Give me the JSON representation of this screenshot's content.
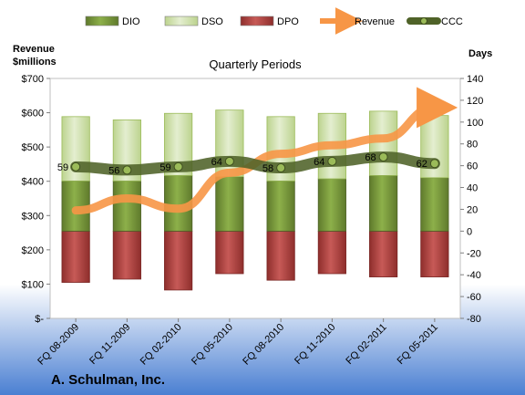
{
  "company": "A. Schulman, Inc.",
  "chart_data": {
    "type": "bar",
    "title": "Quarterly Periods",
    "ylabel_left": "Revenue\n$millions",
    "ylabel_right": "Days",
    "categories": [
      "FQ 08-2009",
      "FQ 11-2009",
      "FQ 02-2010",
      "FQ 05-2010",
      "FQ 08-2010",
      "FQ 11-2010",
      "FQ 02-2011",
      "FQ 05-2011"
    ],
    "left_axis": {
      "min": 0,
      "max": 700,
      "step": 100,
      "tick_labels": [
        "$-",
        "$100",
        "$200",
        "$300",
        "$400",
        "$500",
        "$600",
        "$700"
      ]
    },
    "right_axis": {
      "min": -80,
      "max": 140,
      "step": 20,
      "tick_labels": [
        "-80",
        "-60",
        "-40",
        "-20",
        "0",
        "20",
        "40",
        "60",
        "80",
        "100",
        "120",
        "140"
      ]
    },
    "legend": {
      "position": "top",
      "entries": [
        {
          "name": "DIO",
          "color": "#77933c"
        },
        {
          "name": "DSO",
          "color": "#d7e4bd"
        },
        {
          "name": "DPO",
          "color": "#b94a48"
        },
        {
          "name": "Revenue",
          "color": "#f79646"
        },
        {
          "name": "CCC",
          "color": "#4f6228"
        }
      ]
    },
    "series": [
      {
        "name": "DIO",
        "axis": "right",
        "stack": "positive",
        "values": [
          46,
          46,
          51,
          50,
          46,
          48,
          51,
          49
        ]
      },
      {
        "name": "DSO",
        "axis": "right",
        "stack": "positive",
        "values": [
          59,
          56,
          57,
          61,
          59,
          60,
          59,
          57
        ]
      },
      {
        "name": "DPO",
        "axis": "right",
        "stack": "negative",
        "values": [
          -47,
          -44,
          -54,
          -39,
          -45,
          -39,
          -42,
          -42
        ]
      },
      {
        "name": "Revenue",
        "axis": "left",
        "type": "line",
        "values": [
          315,
          350,
          320,
          425,
          480,
          505,
          525,
          615
        ]
      },
      {
        "name": "CCC",
        "axis": "right",
        "type": "line",
        "values": [
          59,
          56,
          59,
          64,
          58,
          64,
          68,
          62
        ],
        "labels": [
          "59",
          "56",
          "59",
          "64",
          "58",
          "64",
          "68",
          "62"
        ]
      }
    ],
    "colors": {
      "DIO": "#77933c",
      "DIO_dark": "#4f6228",
      "DSO": "#d7e4bd",
      "DSO_dark": "#9bbb59",
      "DPO": "#b94a48",
      "DPO_dark": "#7a2624",
      "Revenue": "#f79646",
      "CCC": "#4f6228"
    }
  }
}
